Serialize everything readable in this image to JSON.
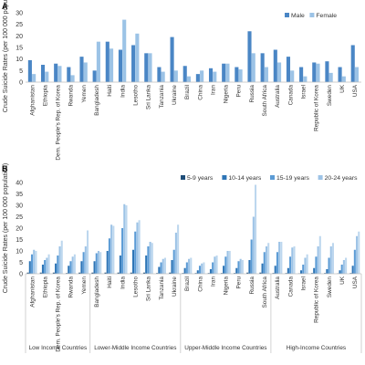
{
  "chart_data": [
    {
      "panel_label": "A",
      "type": "bar",
      "ylabel": "Crude Suicide Rates (per 100 000 population)",
      "ylim": [
        0,
        30
      ],
      "yticks": [
        0,
        5,
        10,
        15,
        20,
        25,
        30
      ],
      "grid": false,
      "legend_position": "top-right",
      "categories": [
        "Afghanistan",
        "Ethiopia",
        "Dem. People's Rep. of Korea",
        "Rwanda",
        "Yemen",
        "Bangladesh",
        "Haiti",
        "India",
        "Lesotho",
        "Sri Lanka",
        "Tanzania",
        "Ukraine",
        "Brazil",
        "China",
        "Iran",
        "Nigeria",
        "Peru",
        "Russia",
        "South Africa",
        "Australia",
        "Canada",
        "Israel",
        "Republic of Korea",
        "Sweden",
        "UK",
        "USA"
      ],
      "series": [
        {
          "name": "Male",
          "color": "#4a86c5",
          "values": [
            9.5,
            7.5,
            8.0,
            6.5,
            11.0,
            5.0,
            17.5,
            14.0,
            16.0,
            12.5,
            6.5,
            19.5,
            7.0,
            3.5,
            6.0,
            8.0,
            6.5,
            22.0,
            12.5,
            14.0,
            11.0,
            6.5,
            8.5,
            9.0,
            6.5,
            16.0
          ]
        },
        {
          "name": "Female",
          "color": "#9cc3e6",
          "values": [
            3.5,
            4.5,
            7.0,
            3.0,
            8.5,
            17.5,
            14.5,
            27.0,
            21.0,
            12.5,
            4.5,
            5.0,
            2.5,
            5.0,
            4.5,
            8.0,
            5.5,
            12.5,
            6.5,
            8.5,
            5.0,
            2.5,
            8.0,
            4.0,
            2.5,
            6.5
          ]
        }
      ]
    },
    {
      "panel_label": "B",
      "type": "bar",
      "ylabel": "Crude Suicide Rates (per 100 000 population)",
      "ylim": [
        0,
        40
      ],
      "yticks": [
        0,
        5,
        10,
        15,
        20,
        25,
        30,
        35,
        40
      ],
      "grid": false,
      "legend_position": "top-right",
      "categories": [
        "Afghanistan",
        "Ethiopia",
        "Dem. People's Rep. of Korea",
        "Rwanda",
        "Yemen",
        "Bangladesh",
        "Haiti",
        "India",
        "Lesotho",
        "Sri Lanka",
        "Tanzania",
        "Ukraine",
        "Brazil",
        "China",
        "Iran",
        "Nigeria",
        "Peru",
        "Russia",
        "South Africa",
        "Australia",
        "Canada",
        "Israel",
        "Republic of Korea",
        "Sweden",
        "UK",
        "USA"
      ],
      "groups": [
        {
          "label": "Low Income Countries",
          "start": 0,
          "end": 4
        },
        {
          "label": "Lower-Middle Income Countries",
          "start": 5,
          "end": 11
        },
        {
          "label": "Upper-Middle Income Countries",
          "start": 12,
          "end": 18
        },
        {
          "label": "High-Income Countries",
          "start": 19,
          "end": 25
        }
      ],
      "series": [
        {
          "name": "5-9 years",
          "color": "#1f4e79",
          "values": [
            0.5,
            0.5,
            0.5,
            0.3,
            0.5,
            0.5,
            0.5,
            0.5,
            0.5,
            0.5,
            0.3,
            0.5,
            0.3,
            0.3,
            0.3,
            0.3,
            0.3,
            0.5,
            0.5,
            0.3,
            0.3,
            0.2,
            0.3,
            0.3,
            0.2,
            0.3
          ]
        },
        {
          "name": "10-14 years",
          "color": "#2e75b6",
          "values": [
            5.5,
            4.0,
            4.5,
            3.5,
            5.5,
            5.5,
            10.0,
            8.0,
            10.5,
            8.0,
            3.0,
            6.0,
            2.5,
            1.5,
            2.0,
            3.5,
            2.5,
            6.0,
            4.5,
            3.5,
            2.5,
            1.5,
            2.5,
            2.0,
            1.5,
            3.5
          ]
        },
        {
          "name": "15-19 years",
          "color": "#5b9bd5",
          "values": [
            8.5,
            6.0,
            8.0,
            5.5,
            9.5,
            9.0,
            15.5,
            20.0,
            18.5,
            12.0,
            5.0,
            10.5,
            5.0,
            3.5,
            5.0,
            7.5,
            5.5,
            15.0,
            9.5,
            9.5,
            7.5,
            4.0,
            7.5,
            7.0,
            4.0,
            10.5
          ]
        },
        {
          "name": "20-24 years",
          "color": "#9dc3e6",
          "values": [
            10.5,
            7.0,
            12.0,
            7.5,
            12.0,
            10.0,
            21.5,
            30.5,
            22.5,
            14.0,
            6.5,
            18.0,
            6.5,
            4.5,
            7.5,
            10.0,
            6.5,
            25.0,
            12.0,
            14.0,
            11.5,
            7.0,
            12.0,
            12.0,
            6.0,
            16.5
          ]
        },
        {
          "name": "25-29 years",
          "color": "#bdd7ee",
          "values": [
            10.0,
            8.5,
            14.5,
            8.5,
            19.0,
            9.5,
            21.0,
            30.0,
            23.5,
            13.5,
            7.0,
            21.5,
            7.0,
            5.0,
            8.0,
            10.0,
            6.0,
            39.0,
            13.5,
            14.0,
            12.0,
            8.5,
            16.5,
            13.5,
            7.0,
            18.5
          ]
        }
      ]
    }
  ]
}
